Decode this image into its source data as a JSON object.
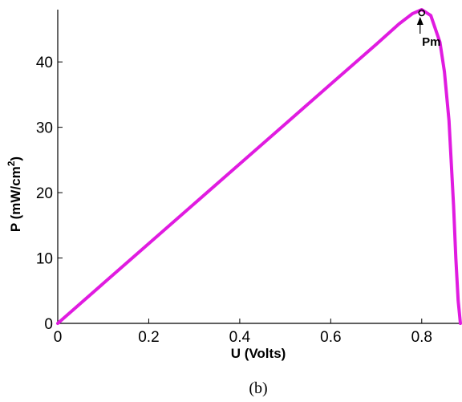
{
  "chart_data": {
    "type": "line",
    "title": "",
    "caption": "(b)",
    "xlabel": "U (Volts)",
    "ylabel": {
      "main": "P (mW/cm",
      "superscript": "2",
      "close": ")"
    },
    "xlim": [
      0,
      0.885
    ],
    "ylim": [
      0,
      48
    ],
    "xticks": [
      0,
      0.2,
      0.4,
      0.6,
      0.8
    ],
    "xtick_labels": [
      "0",
      "0.2",
      "0.4",
      "0.6",
      "0.8"
    ],
    "yticks": [
      0,
      10,
      20,
      30,
      40
    ],
    "ytick_labels": [
      "0",
      "10",
      "20",
      "30",
      "40"
    ],
    "grid": false,
    "series": [
      {
        "color": "#e01be0",
        "x": [
          0,
          0.1,
          0.2,
          0.3,
          0.4,
          0.5,
          0.6,
          0.7,
          0.75,
          0.78,
          0.8,
          0.82,
          0.84,
          0.85,
          0.86,
          0.87,
          0.875,
          0.88,
          0.885
        ],
        "y": [
          0,
          6.1,
          12.2,
          18.3,
          24.4,
          30.5,
          36.6,
          42.7,
          45.8,
          47.4,
          48.0,
          47.1,
          43.0,
          38.5,
          31.0,
          18.0,
          10.0,
          3.5,
          0
        ]
      }
    ],
    "annotations": [
      {
        "label": "Pm",
        "x": 0.8,
        "y": 48.0,
        "marker": "circle",
        "arrow": true
      }
    ]
  }
}
